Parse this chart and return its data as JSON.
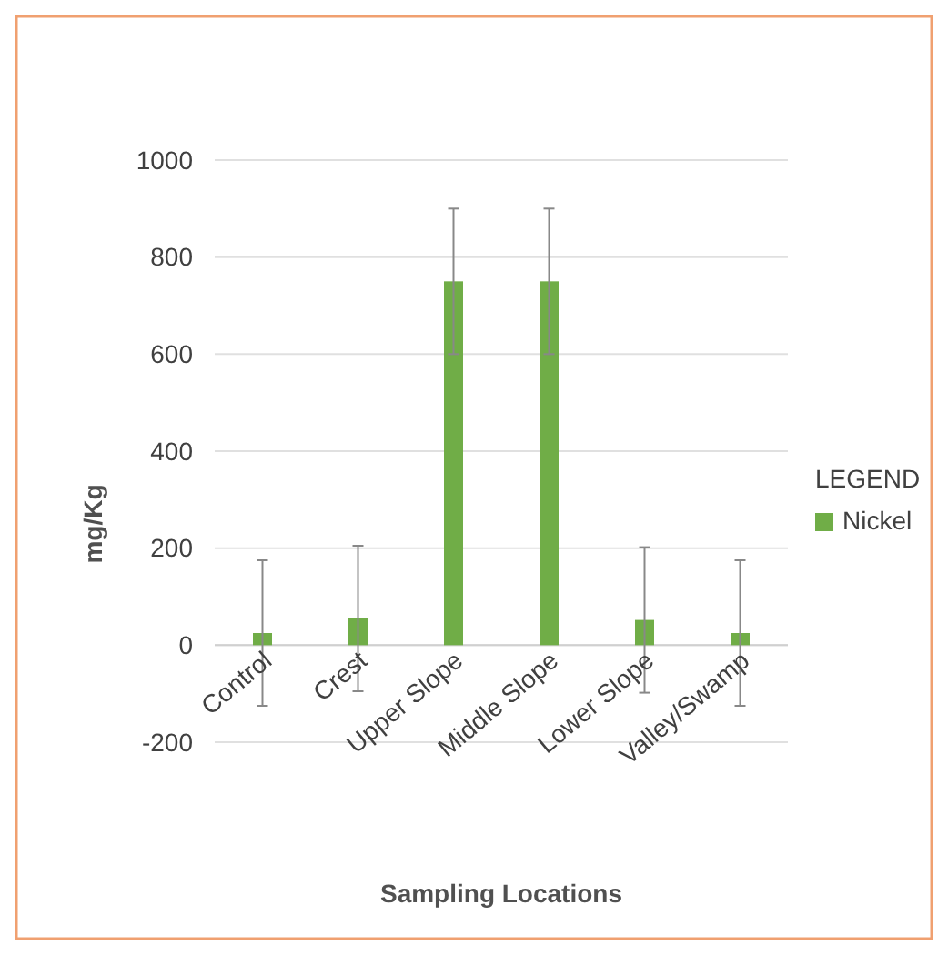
{
  "chart_data": {
    "type": "bar",
    "xlabel": "Sampling Locations",
    "ylabel": "mg/Kg",
    "legend_title": "LEGEND",
    "legend": "right",
    "categories": [
      "Control",
      "Crest",
      "Upper Slope",
      "Middle Slope",
      "Lower Slope",
      "Valley/Swamp"
    ],
    "series": [
      {
        "name": "Nickel",
        "color": "#70ad47",
        "values": [
          25,
          55,
          750,
          750,
          52,
          25
        ],
        "errors": [
          150,
          150,
          150,
          150,
          150,
          150
        ]
      }
    ],
    "ylim": [
      -200,
      1000
    ],
    "yticks": [
      -200,
      0,
      200,
      400,
      600,
      800,
      1000
    ],
    "grid": "y"
  }
}
